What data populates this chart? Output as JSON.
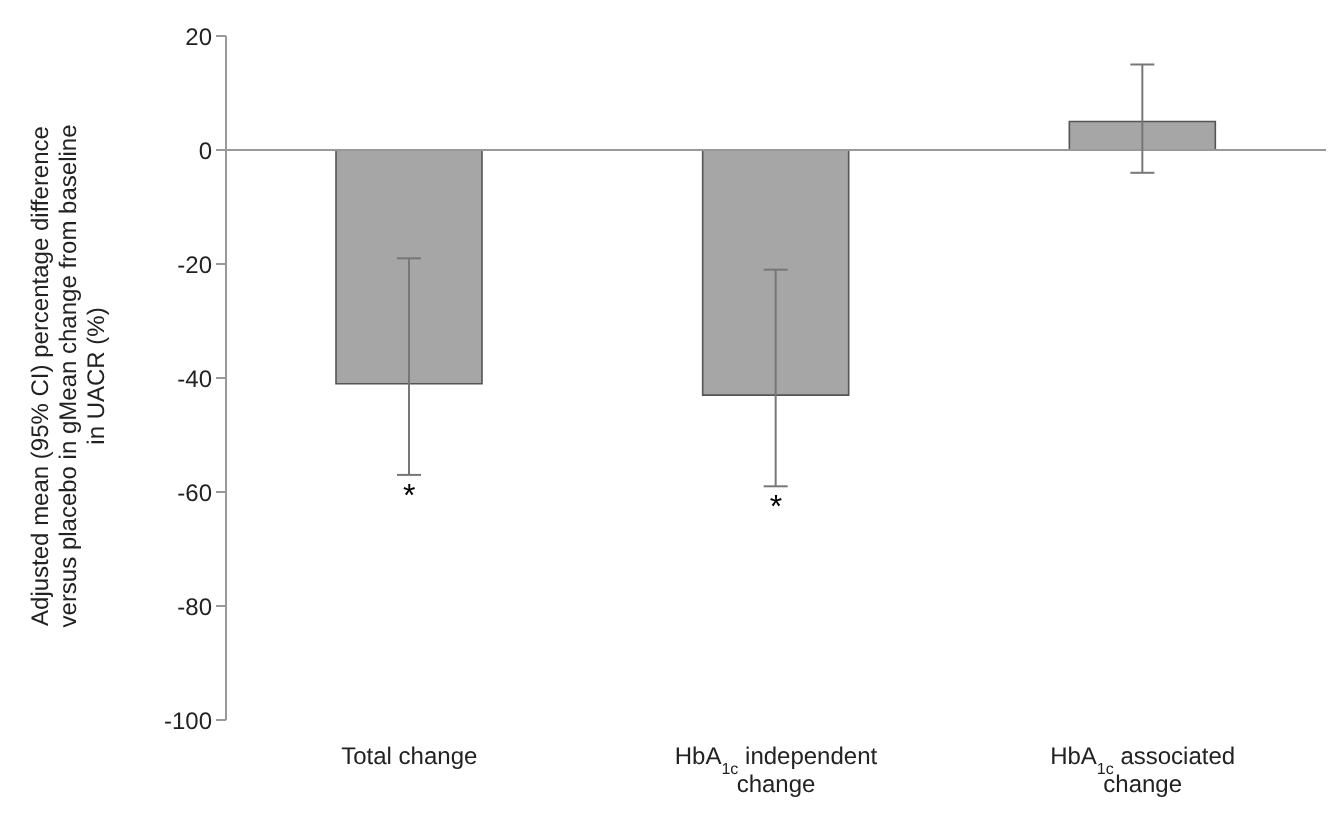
{
  "chart_data": {
    "type": "bar",
    "ylabel": "Adjusted mean (95% CI) percentage difference versus placebo in gMean change from baseline in UACR (%)",
    "categories": [
      "Total change",
      "HbA$_{1c}$ independent change",
      "HbA$_{1c}$ associated change"
    ],
    "values": [
      -41,
      -43,
      5
    ],
    "errors": [
      [
        -57,
        -19
      ],
      [
        -59,
        -21
      ],
      [
        -4,
        15
      ]
    ],
    "color": "#a6a6a6",
    "ylim": [
      -100,
      20
    ],
    "yticks": [
      -100,
      -80,
      -60,
      -40,
      -20,
      0,
      20
    ],
    "ref_lines": [
      {
        "axis": "y",
        "value": 0,
        "color": "#999999"
      }
    ],
    "annotations": [
      "*",
      "*"
    ],
    "grid": false,
    "legend": false
  }
}
